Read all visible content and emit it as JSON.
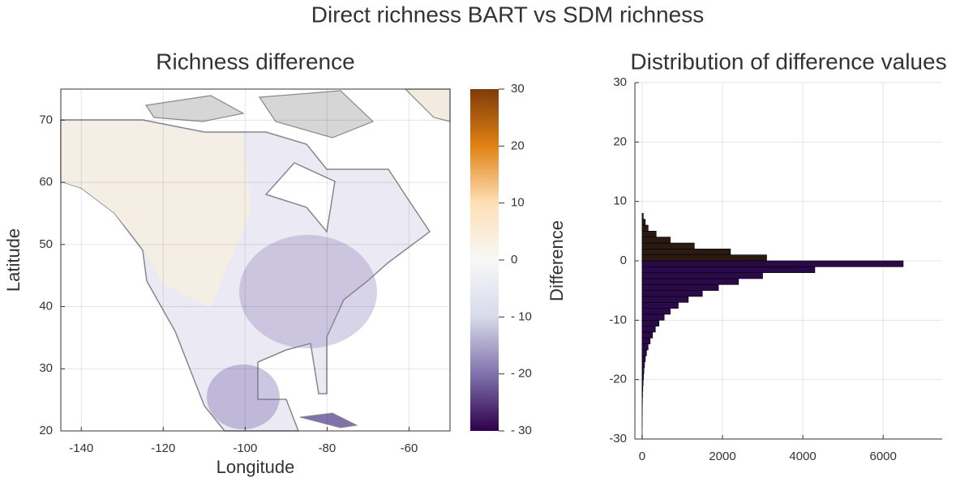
{
  "title": "Direct richness BART vs SDM richness",
  "chart_data": [
    {
      "type": "map",
      "title": "Richness difference",
      "xlabel": "Longitude",
      "ylabel": "Latitude",
      "xlim": [
        -145,
        -50
      ],
      "ylim": [
        20,
        75
      ],
      "xticks": [
        -140,
        -120,
        -100,
        -80,
        -60
      ],
      "yticks": [
        20,
        30,
        40,
        50,
        60,
        70
      ],
      "grid": true,
      "colorbar_label": "Difference",
      "colorbar_lim": [
        -30,
        30
      ],
      "colorbar_ticks": [
        {
          "value": -30,
          "label": "- 30"
        },
        {
          "value": -20,
          "label": "- 20"
        },
        {
          "value": -10,
          "label": "- 10"
        },
        0,
        10,
        20,
        30
      ],
      "colormap": [
        "#2d004b",
        "#8073ac",
        "#d8daeb",
        "#f7f7f7",
        "#fee0b6",
        "#e08214",
        "#7f3b08"
      ]
    },
    {
      "type": "histogram",
      "orientation": "horizontal",
      "title": "Distribution of difference values",
      "bins": [
        -30,
        -29,
        -28,
        -27,
        -26,
        -25,
        -24,
        -23,
        -22,
        -21,
        -20,
        -19,
        -18,
        -17,
        -16,
        -15,
        -14,
        -13,
        -12,
        -11,
        -10,
        -9,
        -8,
        -7,
        -6,
        -5,
        -4,
        -3,
        -2,
        -1,
        0,
        1,
        2,
        3,
        4,
        5,
        6,
        7,
        8
      ],
      "counts": [
        1,
        1,
        2,
        3,
        4,
        6,
        8,
        12,
        18,
        25,
        35,
        45,
        60,
        80,
        110,
        150,
        200,
        260,
        330,
        420,
        550,
        700,
        900,
        1150,
        1500,
        1900,
        2400,
        3000,
        4300,
        6500,
        3100,
        2200,
        1300,
        700,
        350,
        150,
        80,
        30
      ],
      "positive_color": "#2a1a12",
      "negative_color": "#2b0a4a",
      "xlim": [
        -180,
        7470
      ],
      "ylim": [
        -30,
        30
      ],
      "xticks": [
        0,
        2000,
        4000,
        6000
      ],
      "yticks": [
        -30,
        -20,
        -10,
        0,
        10,
        20,
        30
      ],
      "grid": true
    }
  ]
}
